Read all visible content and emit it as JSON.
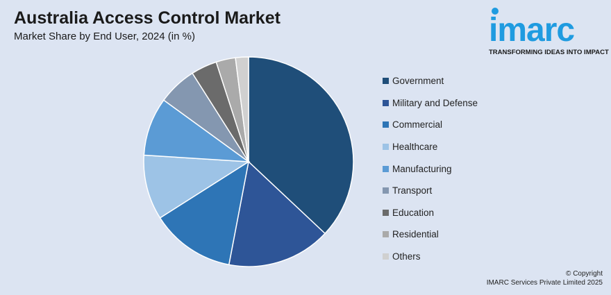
{
  "header": {
    "title": "Australia Access Control Market",
    "subtitle": "Market Share by End User, 2024 (in %)"
  },
  "logo": {
    "word": "imarc",
    "tagline": "TRANSFORMING IDEAS INTO IMPACT",
    "color": "#1f9be0"
  },
  "copyright": {
    "line1": "© Copyright",
    "line2": "IMARC Services Private Limited 2025"
  },
  "chart_data": {
    "type": "pie",
    "title": "Australia Access Control Market",
    "subtitle": "Market Share by End User, 2024 (in %)",
    "legend_position": "right",
    "categories": [
      "Government",
      "Military and Defense",
      "Commercial",
      "Healthcare",
      "Manufacturing",
      "Transport",
      "Education",
      "Residential",
      "Others"
    ],
    "values": [
      37,
      16,
      13,
      10,
      9,
      6,
      4,
      3,
      2
    ],
    "colors": [
      "#1f4e79",
      "#2e5597",
      "#2e75b6",
      "#9dc3e6",
      "#5b9bd5",
      "#8497b0",
      "#6b6b6b",
      "#aaaaaa",
      "#d0d0d0"
    ]
  }
}
